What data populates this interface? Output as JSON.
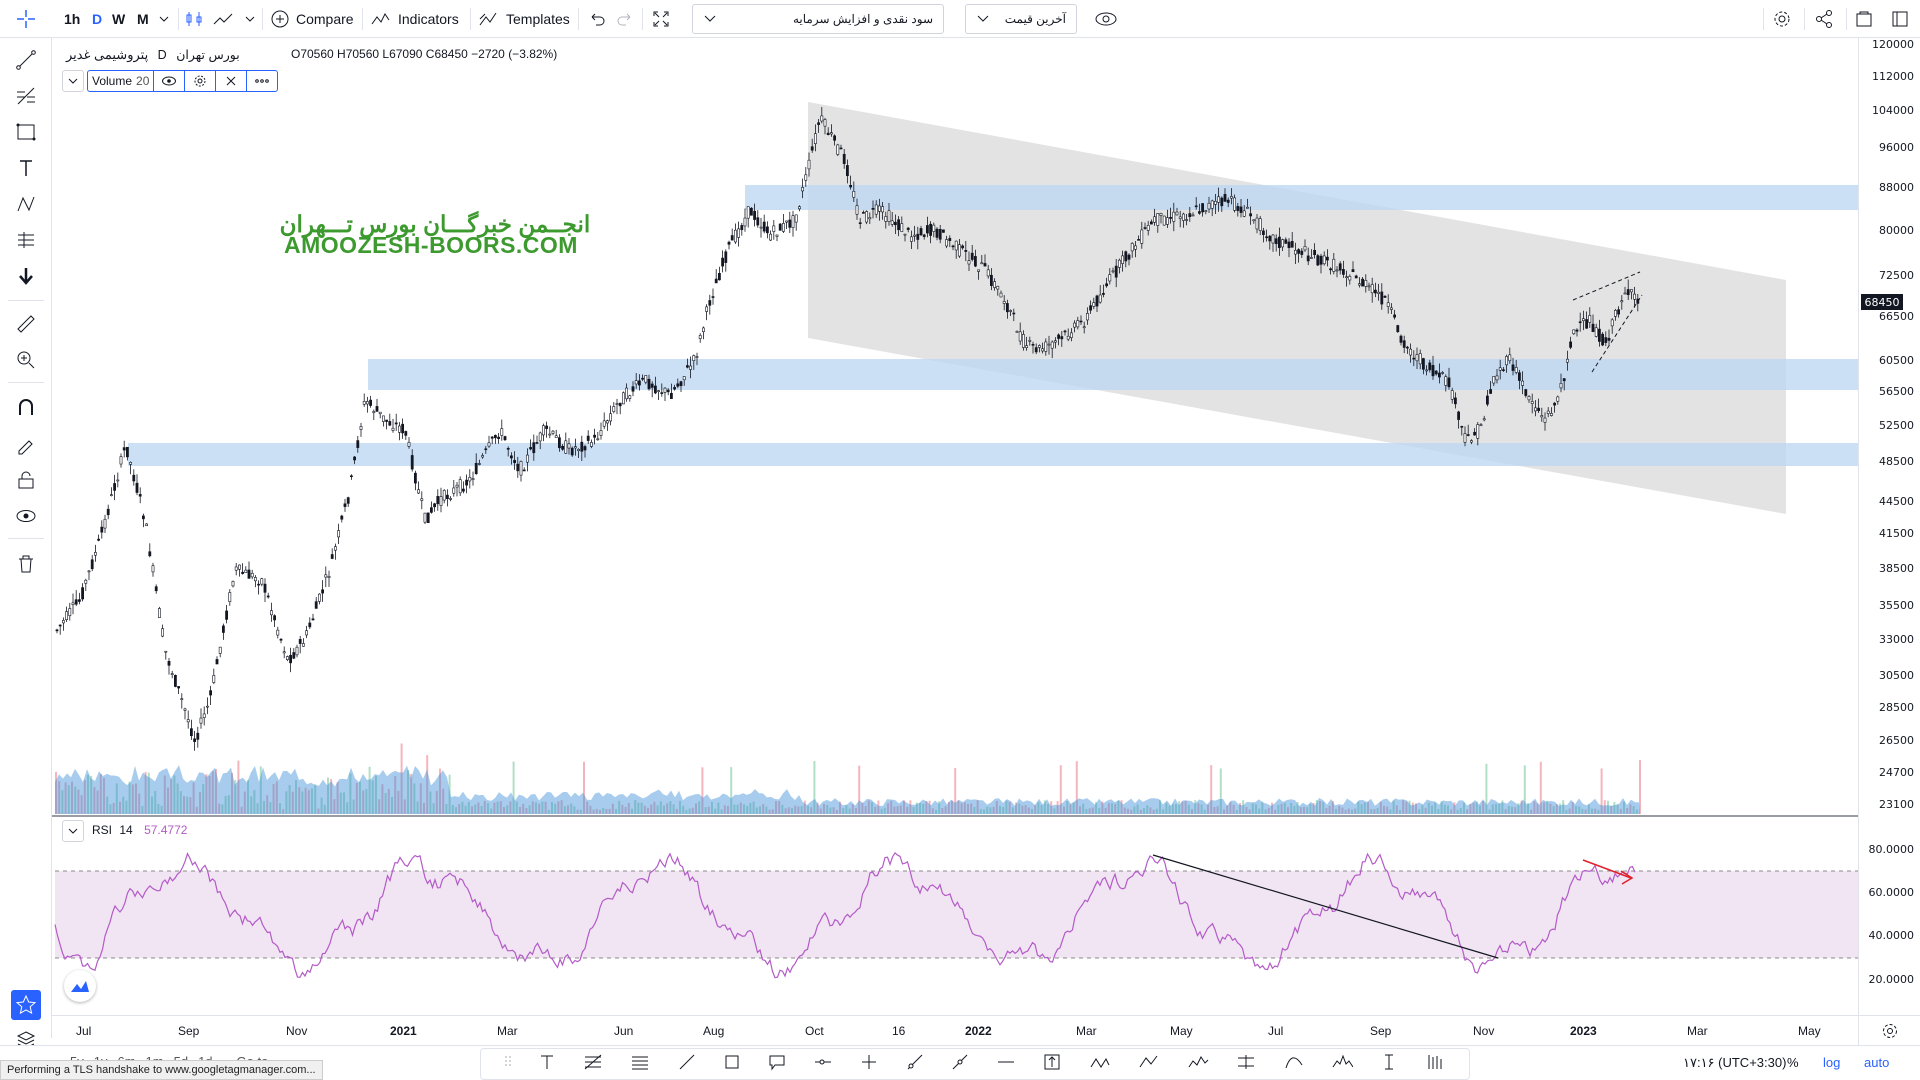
{
  "toolbar": {
    "timeframes": [
      "1h",
      "D",
      "W",
      "M"
    ],
    "active_timeframe": "D",
    "compare_label": "Compare",
    "indicators_label": "Indicators",
    "templates_label": "Templates",
    "layout_select": "سود نقدی و افزایش سرمایه",
    "price_select": "آخرین قیمت"
  },
  "legend": {
    "symbol": "پتروشیمی غدیر",
    "interval": "D",
    "exchange": "بورس تهران",
    "ohlc": "O70560 H70560 L67090 C68450 −2720 (−3.82%)",
    "volume_label": "Volume",
    "volume_value": "20"
  },
  "watermark": {
    "line1": "انجــمن خبرگـــان بورس تـــهران",
    "line2": "AMOOZESH-BOORS.COM"
  },
  "price_axis": {
    "ticks": [
      "120000",
      "112000",
      "104000",
      "96000",
      "88000",
      "80000",
      "72500",
      "66500",
      "60500",
      "56500",
      "52500",
      "48500",
      "44500",
      "41500",
      "38500",
      "35500",
      "33000",
      "30500",
      "28500",
      "26500",
      "24700",
      "23100"
    ],
    "last_price": "68450"
  },
  "rsi": {
    "label": "RSI",
    "period": "14",
    "value": "57.4772",
    "ticks": [
      "80.0000",
      "60.0000",
      "40.0000",
      "20.0000"
    ]
  },
  "time_axis": {
    "ticks": [
      "Jul",
      "Sep",
      "Nov",
      "2021",
      "Mar",
      "Jun",
      "Aug",
      "Oct",
      "16",
      "2022",
      "Mar",
      "May",
      "Jul",
      "Sep",
      "Nov",
      "2023",
      "Mar",
      "May"
    ]
  },
  "bottom": {
    "ranges": [
      "5y",
      "1y",
      "6m",
      "1m",
      "5d",
      "1d"
    ],
    "goto": "Go to",
    "clock": "۱۷:۱۶ (UTC+3:30)",
    "percent": "%",
    "log": "log",
    "auto": "auto"
  },
  "status_text": "Performing a TLS handshake to www.googletagmanager.com...",
  "colors": {
    "accent": "#2962ff",
    "zone": "#bbd7f2",
    "channel": "#d4d4d4",
    "rsi_line": "#b35bc7",
    "rsi_band": "#eedff1",
    "watermark": "#3d9a2f",
    "arrow": "#e0202a"
  }
}
